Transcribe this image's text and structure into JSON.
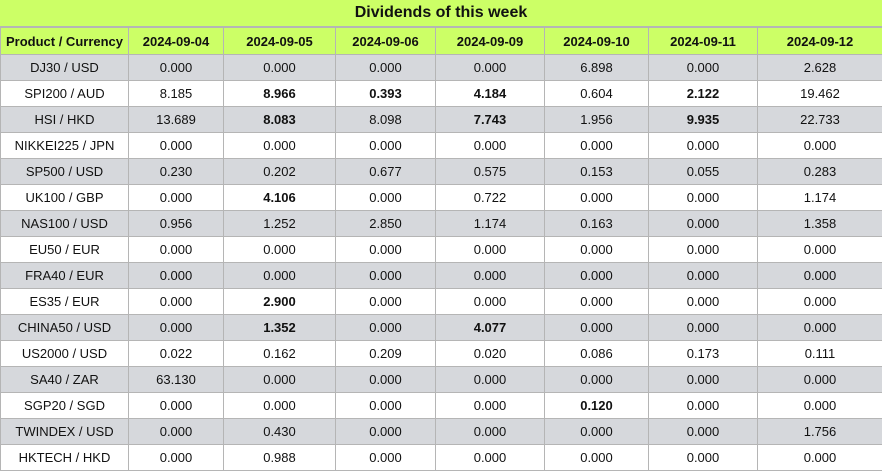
{
  "title": "Dividends of this week",
  "columns": [
    "Product / Currency",
    "2024-09-04",
    "2024-09-05",
    "2024-09-06",
    "2024-09-09",
    "2024-09-10",
    "2024-09-11",
    "2024-09-12"
  ],
  "rows": [
    {
      "product": "DJ30 / USD",
      "values": [
        "0.000",
        "0.000",
        "0.000",
        "0.000",
        "6.898",
        "0.000",
        "2.628"
      ],
      "bold": []
    },
    {
      "product": "SPI200 / AUD",
      "values": [
        "8.185",
        "8.966",
        "0.393",
        "4.184",
        "0.604",
        "2.122",
        "19.462"
      ],
      "bold": [
        1,
        2,
        3,
        5
      ]
    },
    {
      "product": "HSI / HKD",
      "values": [
        "13.689",
        "8.083",
        "8.098",
        "7.743",
        "1.956",
        "9.935",
        "22.733"
      ],
      "bold": [
        1,
        3,
        5
      ]
    },
    {
      "product": "NIKKEI225 / JPN",
      "values": [
        "0.000",
        "0.000",
        "0.000",
        "0.000",
        "0.000",
        "0.000",
        "0.000"
      ],
      "bold": []
    },
    {
      "product": "SP500 / USD",
      "values": [
        "0.230",
        "0.202",
        "0.677",
        "0.575",
        "0.153",
        "0.055",
        "0.283"
      ],
      "bold": []
    },
    {
      "product": "UK100 / GBP",
      "values": [
        "0.000",
        "4.106",
        "0.000",
        "0.722",
        "0.000",
        "0.000",
        "1.174"
      ],
      "bold": [
        1
      ]
    },
    {
      "product": "NAS100 / USD",
      "values": [
        "0.956",
        "1.252",
        "2.850",
        "1.174",
        "0.163",
        "0.000",
        "1.358"
      ],
      "bold": []
    },
    {
      "product": "EU50 / EUR",
      "values": [
        "0.000",
        "0.000",
        "0.000",
        "0.000",
        "0.000",
        "0.000",
        "0.000"
      ],
      "bold": []
    },
    {
      "product": "FRA40 / EUR",
      "values": [
        "0.000",
        "0.000",
        "0.000",
        "0.000",
        "0.000",
        "0.000",
        "0.000"
      ],
      "bold": []
    },
    {
      "product": "ES35 / EUR",
      "values": [
        "0.000",
        "2.900",
        "0.000",
        "0.000",
        "0.000",
        "0.000",
        "0.000"
      ],
      "bold": [
        1
      ]
    },
    {
      "product": "CHINA50 / USD",
      "values": [
        "0.000",
        "1.352",
        "0.000",
        "4.077",
        "0.000",
        "0.000",
        "0.000"
      ],
      "bold": [
        1,
        3
      ]
    },
    {
      "product": "US2000 / USD",
      "values": [
        "0.022",
        "0.162",
        "0.209",
        "0.020",
        "0.086",
        "0.173",
        "0.111"
      ],
      "bold": []
    },
    {
      "product": "SA40 / ZAR",
      "values": [
        "63.130",
        "0.000",
        "0.000",
        "0.000",
        "0.000",
        "0.000",
        "0.000"
      ],
      "bold": []
    },
    {
      "product": "SGP20 / SGD",
      "values": [
        "0.000",
        "0.000",
        "0.000",
        "0.000",
        "0.120",
        "0.000",
        "0.000"
      ],
      "bold": [
        4
      ]
    },
    {
      "product": "TWINDEX / USD",
      "values": [
        "0.000",
        "0.430",
        "0.000",
        "0.000",
        "0.000",
        "0.000",
        "1.756"
      ],
      "bold": []
    },
    {
      "product": "HKTECH / HKD",
      "values": [
        "0.000",
        "0.988",
        "0.000",
        "0.000",
        "0.000",
        "0.000",
        "0.000"
      ],
      "bold": []
    }
  ],
  "colors": {
    "header_bg": "#ccff66",
    "odd_row_bg": "#d6d8dc",
    "even_row_bg": "#ffffff",
    "border": "#b5b5b5"
  }
}
